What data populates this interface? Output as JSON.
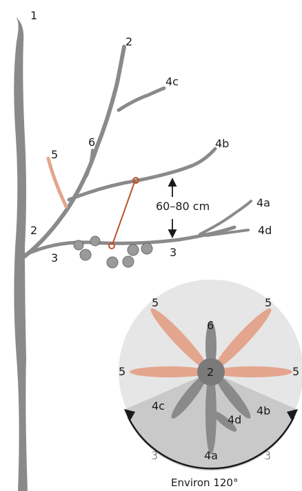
{
  "labels": {
    "trunk": "1",
    "leader": "2",
    "leader_left": "2",
    "branch_4c": "4c",
    "branch_4b": "4b",
    "branch_4a": "4a",
    "branch_4d": "4d",
    "shoot_5": "5",
    "shoot_6": "6",
    "scaffold_left": "3",
    "scaffold_right": "3",
    "spacing": "60–80 cm"
  },
  "inset": {
    "center": "2",
    "top_shoot": "6",
    "upper_left": "5",
    "upper_right": "5",
    "left": "5",
    "right": "5",
    "b_4c": "4c",
    "b_4a": "4a",
    "b_4d": "4d",
    "b_4b": "4b",
    "arc_left": "3",
    "arc_right": "3",
    "caption": "Environ 120°"
  },
  "colors": {
    "branch": "#8a8a8a",
    "shoot_pink": "#e4a58e",
    "cut_line": "#c0502a",
    "inset_bg": "#e6e6e6",
    "inset_sector": "#c9c9c9",
    "arrow": "#1a1a1a"
  }
}
